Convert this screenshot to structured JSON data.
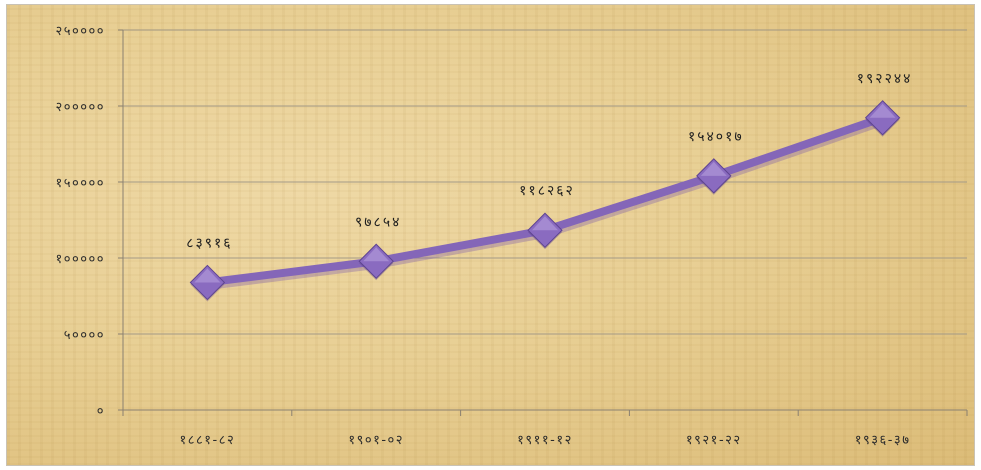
{
  "chart_data": {
    "type": "line",
    "categories": [
      "१८८१-८२",
      "१९०१-०२",
      "१९११-१२",
      "१९२१-२२",
      "१९३६-३७"
    ],
    "series": [
      {
        "values": [
          83916,
          97854,
          118262,
          154017,
          192244
        ]
      }
    ],
    "data_labels": [
      "८३९१६",
      "९७८५४",
      "११८२६२",
      "१५४०१७",
      "१९२२४४"
    ],
    "ylim": [
      0,
      250000
    ],
    "yticks": [
      0,
      50000,
      100000,
      150000,
      200000,
      250000
    ],
    "ytick_labels": [
      "०",
      "५००००",
      "१०००००",
      "१५००००",
      "२०००००",
      "२५००००"
    ],
    "grid": true,
    "line_color": "#8466b8",
    "marker": "diamond",
    "marker_color": "#8a6bc0",
    "background": "parchment"
  }
}
